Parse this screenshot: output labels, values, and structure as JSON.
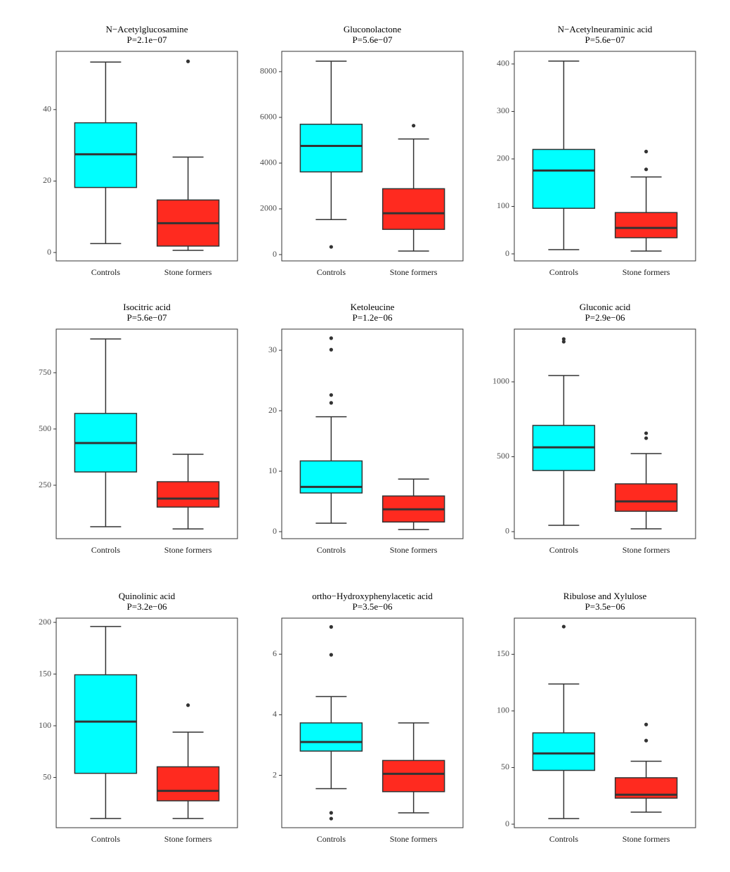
{
  "chart_data": [
    {
      "type": "box",
      "title": "N−Acetylglucosamine",
      "subtitle": "P=2.1e−07",
      "categories": [
        "Controls",
        "Stone formers"
      ],
      "colors": [
        "#00FFFF",
        "#FF2A1F"
      ],
      "boxes": [
        {
          "low": 2.5,
          "q1": 18.2,
          "median": 27.5,
          "q3": 36.3,
          "high": 53.3,
          "outliers": []
        },
        {
          "low": 0.6,
          "q1": 1.8,
          "median": 8.2,
          "q3": 14.7,
          "high": 26.7,
          "outliers": [
            53.5
          ]
        }
      ],
      "ylim": [
        -2.35,
        56.3
      ],
      "yticks": [
        0,
        20,
        40
      ]
    },
    {
      "type": "box",
      "title": "Gluconolactone",
      "subtitle": "P=5.6e−07",
      "categories": [
        "Controls",
        "Stone formers"
      ],
      "colors": [
        "#00FFFF",
        "#FF2A1F"
      ],
      "boxes": [
        {
          "low": 1532,
          "q1": 3616,
          "median": 4750,
          "q3": 5700,
          "high": 8458,
          "outliers": [
            337
          ]
        },
        {
          "low": 153,
          "q1": 1103,
          "median": 1808,
          "q3": 2880,
          "high": 5056,
          "outliers": [
            5638
          ]
        }
      ],
      "ylim": [
        -276,
        8888
      ],
      "yticks": [
        0,
        2000,
        4000,
        6000,
        8000
      ]
    },
    {
      "type": "box",
      "title": "N−Acetylneuraminic acid",
      "subtitle": "P=5.6e−07",
      "categories": [
        "Controls",
        "Stone formers"
      ],
      "colors": [
        "#00FFFF",
        "#FF2A1F"
      ],
      "boxes": [
        {
          "low": 8.9,
          "q1": 96,
          "median": 175.6,
          "q3": 220,
          "high": 406,
          "outliers": []
        },
        {
          "low": 5.9,
          "q1": 34,
          "median": 54.6,
          "q3": 87,
          "high": 162,
          "outliers": [
            178,
            215.5
          ]
        }
      ],
      "ylim": [
        -14.8,
        426.6
      ],
      "yticks": [
        0,
        100,
        200,
        300,
        400
      ]
    },
    {
      "type": "box",
      "title": "Isocitric acid",
      "subtitle": "P=5.6e−07",
      "categories": [
        "Controls",
        "Stone formers"
      ],
      "colors": [
        "#00FFFF",
        "#FF2A1F"
      ],
      "boxes": [
        {
          "low": 65.6,
          "q1": 309,
          "median": 437.5,
          "q3": 569,
          "high": 900,
          "outliers": []
        },
        {
          "low": 56,
          "q1": 153,
          "median": 190.6,
          "q3": 265.6,
          "high": 387.5,
          "outliers": []
        }
      ],
      "ylim": [
        12.5,
        943.75
      ],
      "yticks": [
        250,
        500,
        750
      ]
    },
    {
      "type": "box",
      "title": "Ketoleucine",
      "subtitle": "P=1.2e−06",
      "categories": [
        "Controls",
        "Stone formers"
      ],
      "colors": [
        "#00FFFF",
        "#FF2A1F"
      ],
      "boxes": [
        {
          "low": 1.4,
          "q1": 6.4,
          "median": 7.4,
          "q3": 11.7,
          "high": 19,
          "outliers": [
            21.3,
            22.6,
            30.1,
            32
          ]
        },
        {
          "low": 0.35,
          "q1": 1.6,
          "median": 3.7,
          "q3": 5.9,
          "high": 8.7,
          "outliers": []
        }
      ],
      "ylim": [
        -1.16,
        33.5
      ],
      "yticks": [
        0,
        10,
        20,
        30
      ]
    },
    {
      "type": "box",
      "title": "Gluconic acid",
      "subtitle": "P=2.9e−06",
      "categories": [
        "Controls",
        "Stone formers"
      ],
      "colors": [
        "#00FFFF",
        "#FF2A1F"
      ],
      "boxes": [
        {
          "low": 42,
          "q1": 408,
          "median": 563,
          "q3": 709,
          "high": 1042,
          "outliers": [
            1268,
            1286
          ]
        },
        {
          "low": 19,
          "q1": 136,
          "median": 202,
          "q3": 319,
          "high": 521,
          "outliers": [
            624,
            657
          ]
        }
      ],
      "ylim": [
        -47,
        1352
      ],
      "yticks": [
        0,
        500,
        1000
      ]
    },
    {
      "type": "box",
      "title": "Quinolinic acid",
      "subtitle": "P=3.2e−06",
      "categories": [
        "Controls",
        "Stone formers"
      ],
      "colors": [
        "#00FFFF",
        "#FF2A1F"
      ],
      "boxes": [
        {
          "low": 10.3,
          "q1": 54,
          "median": 104,
          "q3": 149.3,
          "high": 196,
          "outliers": []
        },
        {
          "low": 10.3,
          "q1": 27.4,
          "median": 37,
          "q3": 60.3,
          "high": 93.8,
          "outliers": [
            119.9
          ]
        }
      ],
      "ylim": [
        1.4,
        204.1
      ],
      "yticks": [
        50,
        100,
        150,
        200
      ]
    },
    {
      "type": "box",
      "title": "ortho−Hydroxyphenylacetic acid",
      "subtitle": "P=3.5e−06",
      "categories": [
        "Controls",
        "Stone formers"
      ],
      "colors": [
        "#00FFFF",
        "#FF2A1F"
      ],
      "boxes": [
        {
          "low": 1.56,
          "q1": 2.8,
          "median": 3.1,
          "q3": 3.73,
          "high": 4.6,
          "outliers": [
            6.9,
            5.98,
            0.76,
            0.57
          ]
        },
        {
          "low": 0.76,
          "q1": 1.46,
          "median": 2.05,
          "q3": 2.49,
          "high": 3.73,
          "outliers": []
        }
      ],
      "ylim": [
        0.27,
        7.19
      ],
      "yticks": [
        2,
        4,
        6
      ]
    },
    {
      "type": "box",
      "title": "Ribulose and Xylulose",
      "subtitle": "P=3.5e−06",
      "categories": [
        "Controls",
        "Stone formers"
      ],
      "colors": [
        "#00FFFF",
        "#FF2A1F"
      ],
      "boxes": [
        {
          "low": 5,
          "q1": 47.5,
          "median": 62.5,
          "q3": 80.6,
          "high": 123.8,
          "outliers": [
            174.4
          ]
        },
        {
          "low": 10.6,
          "q1": 23,
          "median": 26,
          "q3": 41,
          "high": 55.6,
          "outliers": [
            73.8,
            88
          ]
        }
      ],
      "ylim": [
        -3.1,
        181.9
      ],
      "yticks": [
        0,
        50,
        100,
        150
      ]
    }
  ]
}
